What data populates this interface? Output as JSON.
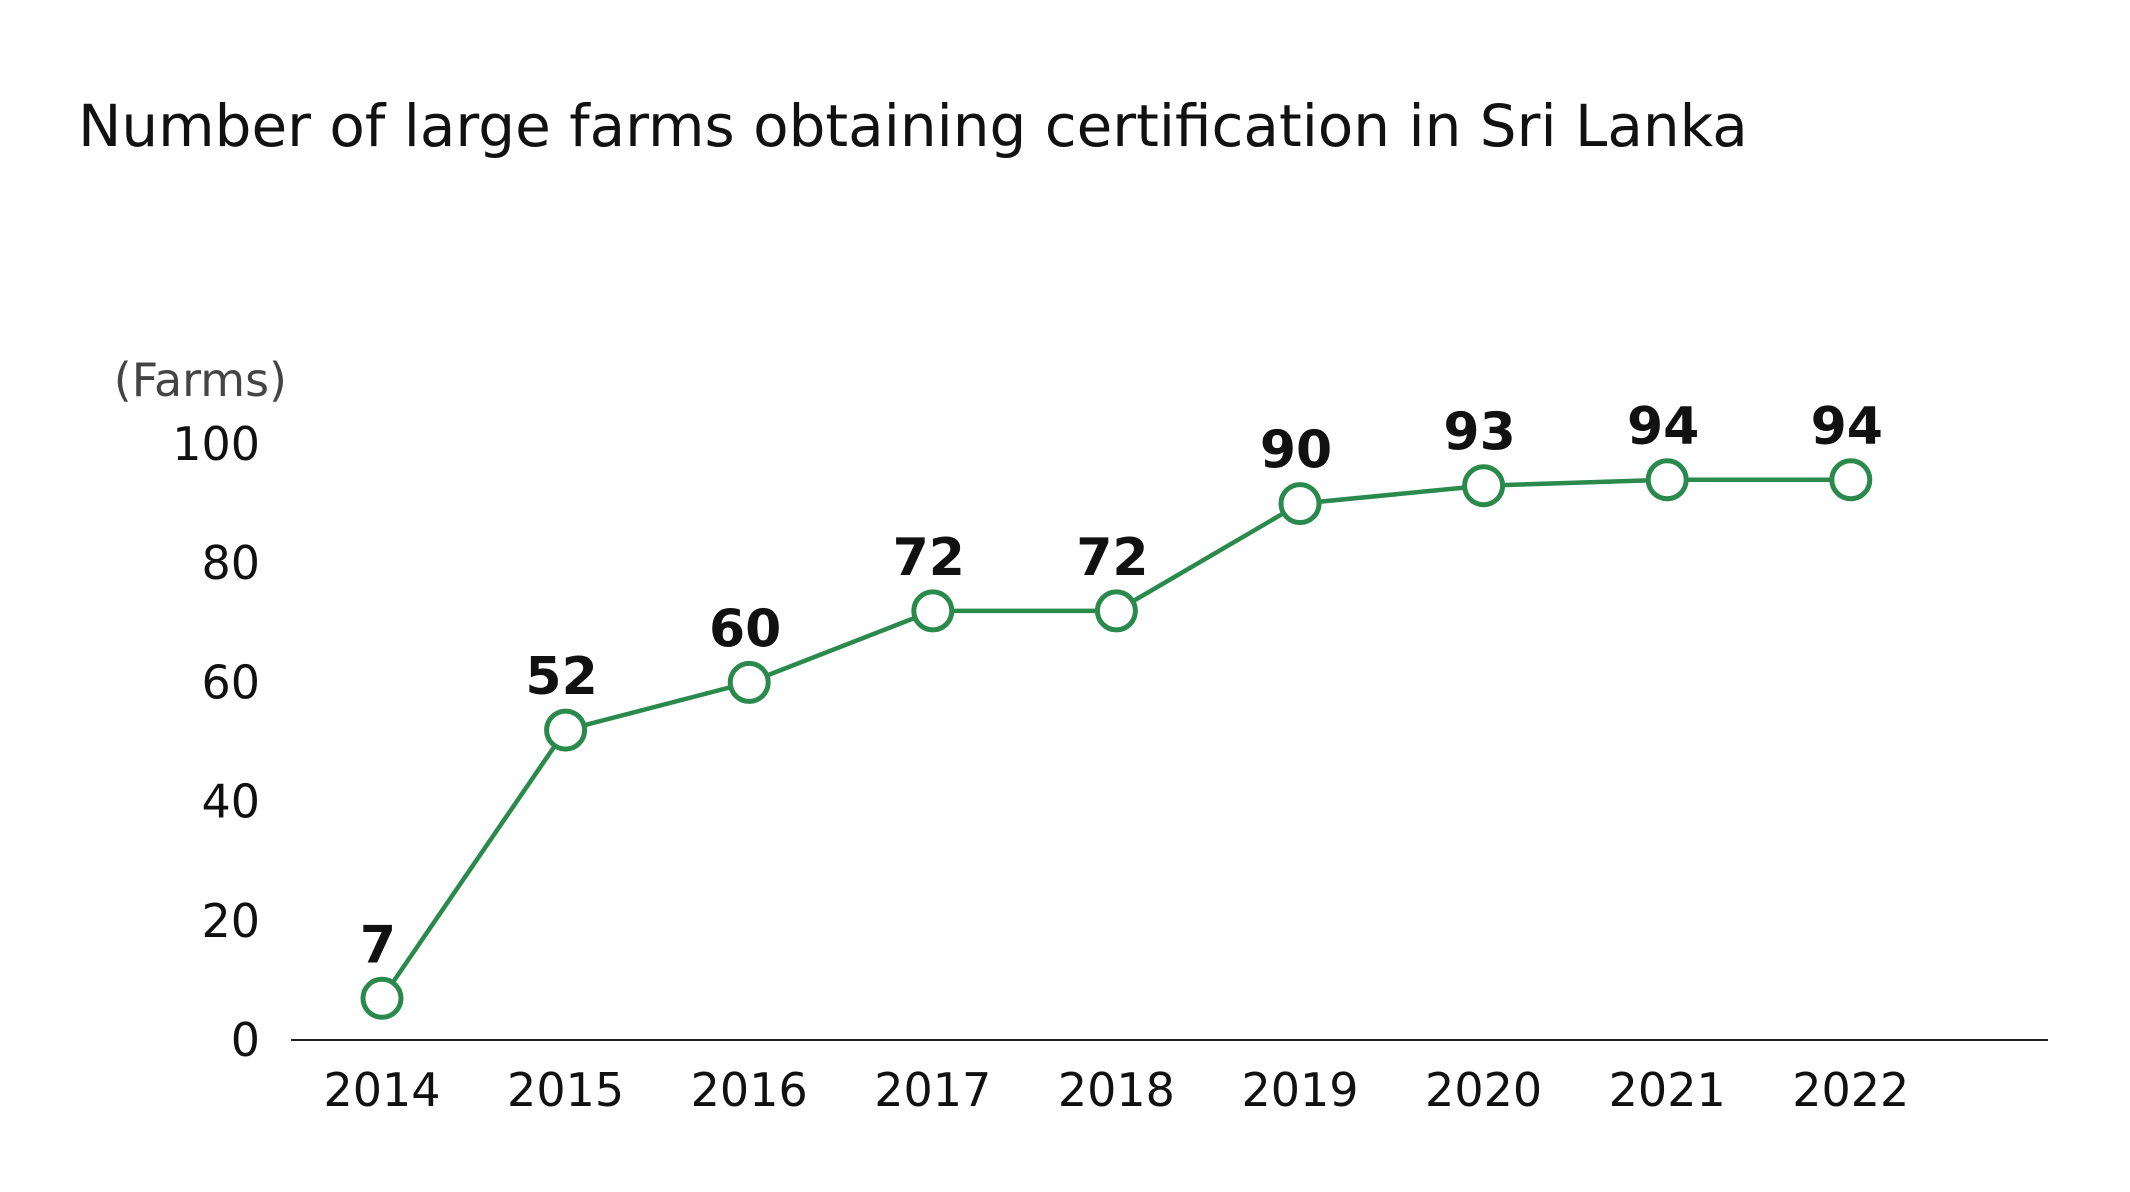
{
  "chart_data": {
    "type": "line",
    "title": "Number of large farms obtaining certification in Sri Lanka",
    "ylabel": "(Farms)",
    "xlabel": "",
    "categories": [
      "2014",
      "2015",
      "2016",
      "2017",
      "2018",
      "2019",
      "2020",
      "2021",
      "2022"
    ],
    "values": [
      7,
      52,
      60,
      72,
      72,
      90,
      93,
      94,
      94
    ],
    "ylim": [
      0,
      100
    ],
    "yticks": [
      0,
      20,
      40,
      60,
      80,
      100
    ],
    "grid": false,
    "data_labels": true,
    "marker": "open-circle",
    "line_color": "#2a8a4c"
  }
}
